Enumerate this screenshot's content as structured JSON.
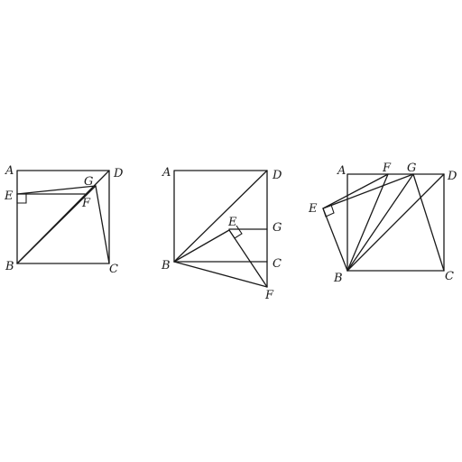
{
  "figures": [
    {
      "id": "figure-1",
      "labels": {
        "A": "A",
        "B": "B",
        "C": "C",
        "D": "D",
        "E": "E",
        "F": "F",
        "G": "G"
      }
    },
    {
      "id": "figure-2",
      "labels": {
        "A": "A",
        "B": "B",
        "C": "C",
        "D": "D",
        "E": "E",
        "F": "F",
        "G": "G"
      }
    },
    {
      "id": "figure-3",
      "labels": {
        "A": "A",
        "B": "B",
        "C": "C",
        "D": "D",
        "E": "E",
        "F": "F",
        "G": "G"
      }
    }
  ]
}
